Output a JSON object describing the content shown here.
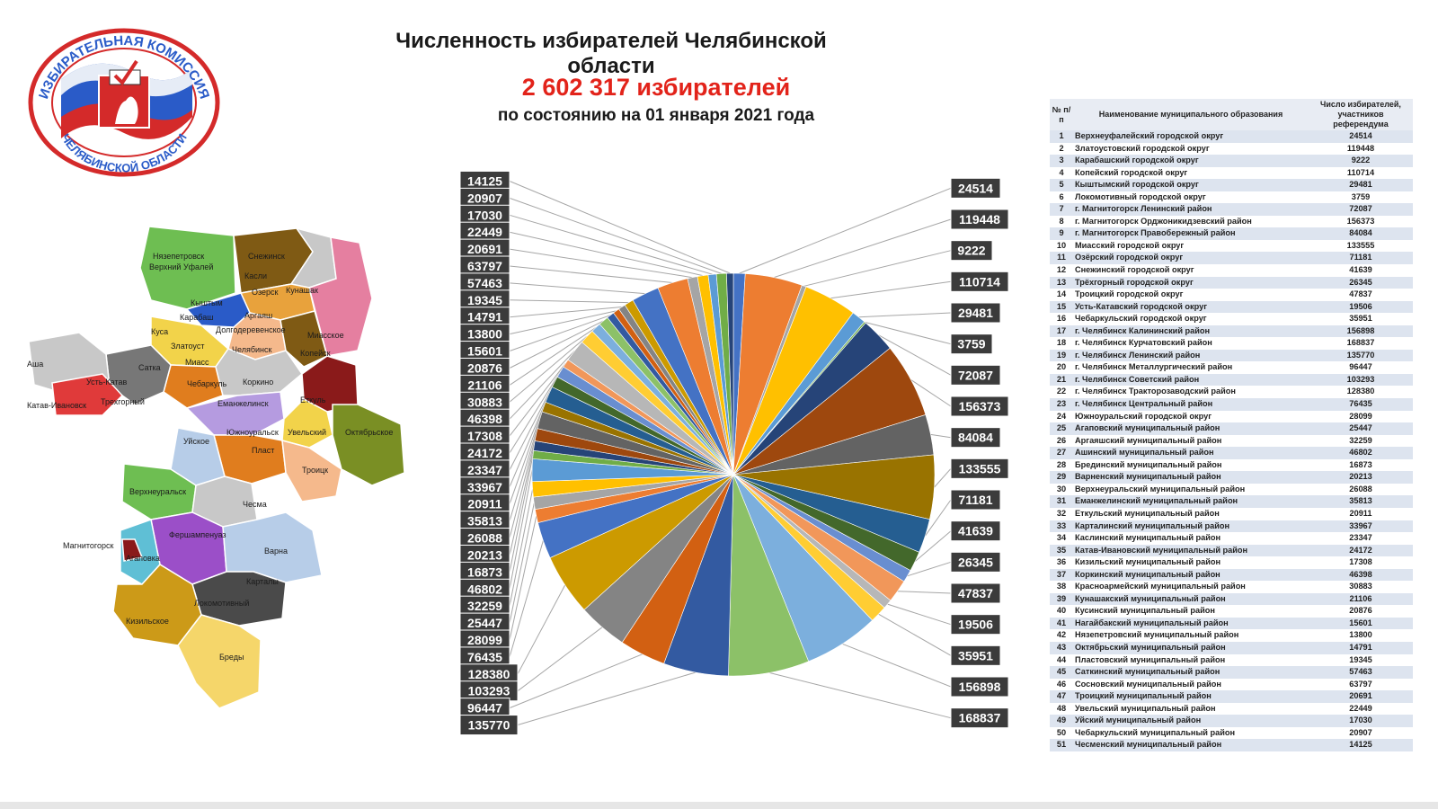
{
  "header": {
    "title": "Численность избирателей Челябинской области",
    "total": "2 602 317 избирателей",
    "as_of": "по состоянию на 01 января 2021 года"
  },
  "logo": {
    "text_top": "ИЗБИРАТЕЛЬНАЯ КОМИССИЯ",
    "text_bottom": "ЧЕЛЯБИНСКОЙ ОБЛАСТИ",
    "colors": {
      "ring": "#d42a2a",
      "flag_blue": "#2a5bc8",
      "flag_red": "#d42a2a"
    }
  },
  "map": {
    "labels": [
      "Нязепетровск",
      "Снежинск",
      "Верхний Уфалей",
      "Касли",
      "Кыштым",
      "Озерск",
      "Кунашак",
      "Карабаш",
      "Аргаяш",
      "Куса",
      "Долгодеревенское",
      "Миасское",
      "Златоуст",
      "Челябинск",
      "Копейск",
      "Аша",
      "Сатка",
      "Миасс",
      "Усть-Катав",
      "Коркино",
      "Чебаркуль",
      "Трехгорный",
      "Еткуль",
      "Катав-Ивановск",
      "Еманжелинск",
      "Южноуральск",
      "Увельский",
      "Октябрьское",
      "Пласт",
      "Уйское",
      "Троицк",
      "Верхнеуральск",
      "Чесма",
      "Фершампенуаз",
      "Магнитогорск",
      "Агаповка",
      "Варна",
      "Карталы",
      "Локомотивный",
      "Кизильское",
      "Бреды"
    ]
  },
  "chart_data": {
    "type": "pie",
    "title": "Численность избирателей Челябинской области",
    "total": 2602317,
    "colors": [
      "#4472c4",
      "#ed7d31",
      "#a5a5a5",
      "#ffc000",
      "#5b9bd5",
      "#70ad47",
      "#264478",
      "#9e480e",
      "#636363",
      "#997300",
      "#255e91",
      "#43682b",
      "#698ed0",
      "#f1975a",
      "#b7b7b7",
      "#ffcd33",
      "#7cafdd",
      "#8cc168",
      "#335aa1",
      "#d26012",
      "#848484",
      "#cc9a00"
    ],
    "categories": [
      "Верхнеуфалейский городской округ",
      "Златоустовский городской округ",
      "Карабашский городской округ",
      "Копейский городской округ",
      "Кыштымский городской округ",
      "Локомотивный городской округ",
      "г. Магнитогорск Ленинский район",
      "г. Магнитогорск Орджоникидзевский район",
      "г. Магнитогорск Правобережный район",
      "Миасский городской округ",
      "Озёрский городской округ",
      "Снежинский городской округ",
      "Трёхгорный городской округ",
      "Троицкий городской округ",
      "Усть-Катавский городской округ",
      "Чебаркульский городской округ",
      "г. Челябинск Калининский район",
      "г. Челябинск Курчатовский район",
      "г. Челябинск Ленинский район",
      "г. Челябинск Металлургический район",
      "г. Челябинск Советский район",
      "г. Челябинск Тракторозаводский район",
      "г. Челябинск Центральный район",
      "Южноуральский городской округ",
      "Агаповский муниципальный район",
      "Аргаяшский муниципальный район",
      "Ашинский муниципальный район",
      "Брединский муниципальный район",
      "Варненский муниципальный район",
      "Верхнеуральский муниципальный район",
      "Еманжелинский муниципальный район",
      "Еткульский муниципальный район",
      "Карталинский муниципальный район",
      "Каслинский муниципальный район",
      "Катав-Ивановский муниципальный район",
      "Кизильский муниципальный район",
      "Коркинский муниципальный район",
      "Красноармейский муниципальный район",
      "Кунашакский муниципальный район",
      "Кусинский муниципальный район",
      "Нагайбакский муниципальный район",
      "Нязепетровский муниципальный район",
      "Октябрьский муниципальный район",
      "Пластовский муниципальный район",
      "Саткинский муниципальный район",
      "Сосновский муниципальный район",
      "Троицкий муниципальный район",
      "Увельский муниципальный район",
      "Уйский муниципальный район",
      "Чебаркульский муниципальный район",
      "Чесменский муниципальный район"
    ],
    "values": [
      24514,
      119448,
      9222,
      110714,
      29481,
      3759,
      72087,
      156373,
      84084,
      133555,
      71181,
      41639,
      26345,
      47837,
      19506,
      35951,
      156898,
      168837,
      135770,
      96447,
      103293,
      128380,
      76435,
      28099,
      25447,
      32259,
      46802,
      16873,
      20213,
      26088,
      35813,
      20911,
      33967,
      23347,
      24172,
      17308,
      46398,
      30883,
      21106,
      20876,
      15601,
      13800,
      14791,
      19345,
      57463,
      63797,
      20691,
      22449,
      17030,
      20907,
      14125
    ]
  },
  "table": {
    "headers": [
      "№ п/п",
      "Наименование муниципального образования",
      "Число избирателей, участников референдума"
    ]
  }
}
